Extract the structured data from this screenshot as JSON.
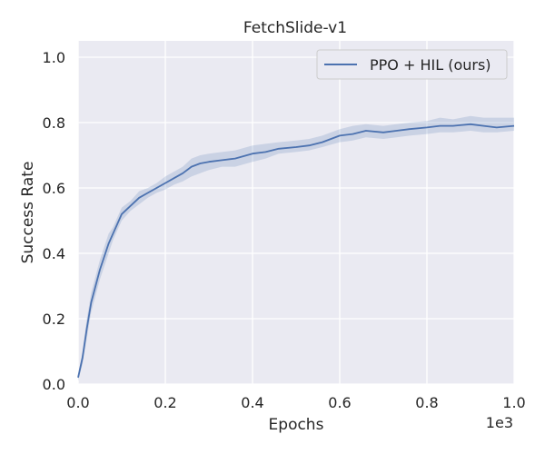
{
  "chart_data": {
    "type": "line",
    "title": "FetchSlide-v1",
    "xlabel": "Epochs",
    "ylabel": "Success Rate",
    "x_offset_text": "1e3",
    "xlim": [
      0,
      1.0
    ],
    "ylim": [
      0,
      1.05
    ],
    "xticks": [
      "0.0",
      "0.2",
      "0.4",
      "0.6",
      "0.8",
      "1.0"
    ],
    "yticks": [
      "0.0",
      "0.2",
      "0.4",
      "0.6",
      "0.8",
      "1.0"
    ],
    "grid": true,
    "legend_position": "top-right",
    "series": [
      {
        "name": "PPO + HIL (ours)",
        "color": "#4c72b0",
        "band_color": "#4c72b0",
        "x": [
          0.0,
          0.01,
          0.02,
          0.03,
          0.04,
          0.05,
          0.06,
          0.07,
          0.08,
          0.09,
          0.1,
          0.12,
          0.14,
          0.16,
          0.18,
          0.2,
          0.22,
          0.24,
          0.26,
          0.28,
          0.3,
          0.33,
          0.36,
          0.4,
          0.43,
          0.46,
          0.5,
          0.53,
          0.56,
          0.6,
          0.63,
          0.66,
          0.7,
          0.73,
          0.76,
          0.8,
          0.83,
          0.86,
          0.9,
          0.93,
          0.96,
          1.0
        ],
        "values": [
          0.02,
          0.08,
          0.17,
          0.25,
          0.3,
          0.35,
          0.39,
          0.43,
          0.46,
          0.49,
          0.52,
          0.545,
          0.57,
          0.585,
          0.6,
          0.615,
          0.63,
          0.645,
          0.665,
          0.675,
          0.68,
          0.685,
          0.69,
          0.705,
          0.71,
          0.72,
          0.725,
          0.73,
          0.74,
          0.76,
          0.765,
          0.775,
          0.77,
          0.775,
          0.78,
          0.785,
          0.79,
          0.79,
          0.795,
          0.79,
          0.785,
          0.79
        ],
        "lower": [
          0.01,
          0.06,
          0.14,
          0.22,
          0.27,
          0.32,
          0.36,
          0.4,
          0.44,
          0.47,
          0.5,
          0.53,
          0.55,
          0.57,
          0.585,
          0.595,
          0.61,
          0.62,
          0.635,
          0.645,
          0.655,
          0.665,
          0.665,
          0.68,
          0.69,
          0.705,
          0.71,
          0.715,
          0.725,
          0.74,
          0.745,
          0.755,
          0.75,
          0.755,
          0.76,
          0.765,
          0.77,
          0.77,
          0.775,
          0.77,
          0.77,
          0.775
        ],
        "upper": [
          0.03,
          0.1,
          0.2,
          0.28,
          0.33,
          0.38,
          0.42,
          0.46,
          0.48,
          0.51,
          0.54,
          0.56,
          0.59,
          0.6,
          0.615,
          0.635,
          0.65,
          0.665,
          0.69,
          0.7,
          0.705,
          0.71,
          0.715,
          0.73,
          0.735,
          0.74,
          0.745,
          0.75,
          0.76,
          0.78,
          0.79,
          0.795,
          0.79,
          0.795,
          0.8,
          0.805,
          0.815,
          0.81,
          0.82,
          0.815,
          0.815,
          0.815
        ]
      }
    ]
  }
}
